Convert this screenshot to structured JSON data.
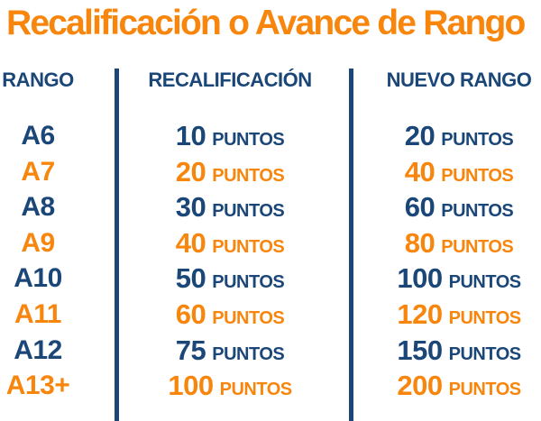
{
  "title": "Recalificación o Avance de Rango",
  "colors": {
    "orange": "#F8850C",
    "navy": "#1B4678",
    "background": "#FFFFFF"
  },
  "table": {
    "headers": {
      "rango": "RANGO",
      "recalificacion": "RECALIFICACIÓN",
      "nuevo_rango": "NUEVO RANGO"
    },
    "puntos_label": "PUNTOS",
    "rows": [
      {
        "rank": "A6",
        "recalificacion": "10",
        "nuevo_rango": "20",
        "color": "navy"
      },
      {
        "rank": "A7",
        "recalificacion": "20",
        "nuevo_rango": "40",
        "color": "orange"
      },
      {
        "rank": "A8",
        "recalificacion": "30",
        "nuevo_rango": "60",
        "color": "navy"
      },
      {
        "rank": "A9",
        "recalificacion": "40",
        "nuevo_rango": "80",
        "color": "orange"
      },
      {
        "rank": "A10",
        "recalificacion": "50",
        "nuevo_rango": "100",
        "color": "navy"
      },
      {
        "rank": "A11",
        "recalificacion": "60",
        "nuevo_rango": "120",
        "color": "orange"
      },
      {
        "rank": "A12",
        "recalificacion": "75",
        "nuevo_rango": "150",
        "color": "navy"
      },
      {
        "rank": "A13+",
        "recalificacion": "100",
        "nuevo_rango": "200",
        "color": "orange"
      }
    ]
  },
  "chart_data": {
    "type": "table",
    "title": "Recalificación o Avance de Rango",
    "columns": [
      "RANGO",
      "RECALIFICACIÓN",
      "NUEVO RANGO"
    ],
    "rows": [
      [
        "A6",
        "10 PUNTOS",
        "20 PUNTOS"
      ],
      [
        "A7",
        "20 PUNTOS",
        "40 PUNTOS"
      ],
      [
        "A8",
        "30 PUNTOS",
        "60 PUNTOS"
      ],
      [
        "A9",
        "40 PUNTOS",
        "80 PUNTOS"
      ],
      [
        "A10",
        "50 PUNTOS",
        "100 PUNTOS"
      ],
      [
        "A11",
        "60 PUNTOS",
        "120 PUNTOS"
      ],
      [
        "A12",
        "75 PUNTOS",
        "150 PUNTOS"
      ],
      [
        "A13+",
        "100 PUNTOS",
        "200 PUNTOS"
      ]
    ]
  }
}
